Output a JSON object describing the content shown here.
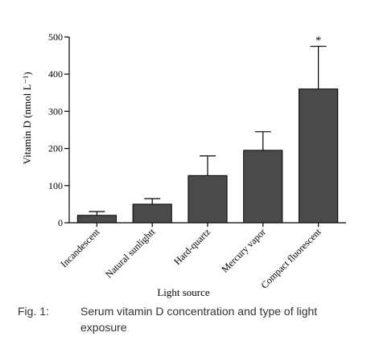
{
  "chart_data": {
    "type": "bar",
    "title": "",
    "xlabel": "Light source",
    "ylabel": "Vitamin D (nmol L⁻¹)",
    "ylim": [
      0,
      500
    ],
    "yticks": [
      "0",
      "100",
      "200",
      "300",
      "400",
      "500"
    ],
    "categories": [
      "Incandescent",
      "Natural sunlightt",
      "Hard-quartz",
      "Mercury vapor",
      "Compact fluorescent"
    ],
    "values": [
      20,
      50,
      127,
      195,
      360
    ],
    "error_upper": [
      30,
      65,
      180,
      245,
      475
    ],
    "annotations": [
      {
        "category": "Compact fluorescent",
        "text": "*"
      }
    ],
    "bar_color": "#4a4a4a",
    "grid": false
  },
  "caption": {
    "label": "Fig. 1:",
    "text": "Serum vitamin D concentration and type of light exposure"
  }
}
